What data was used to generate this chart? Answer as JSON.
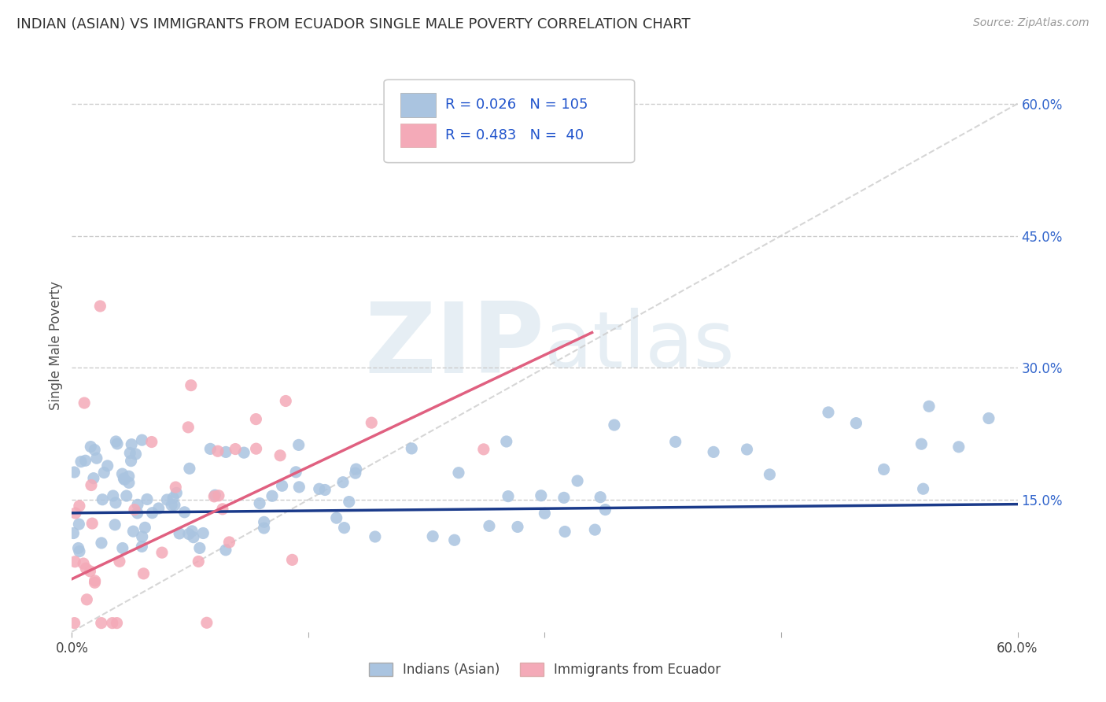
{
  "title": "INDIAN (ASIAN) VS IMMIGRANTS FROM ECUADOR SINGLE MALE POVERTY CORRELATION CHART",
  "source": "Source: ZipAtlas.com",
  "ylabel": "Single Male Poverty",
  "x_min": 0.0,
  "x_max": 0.6,
  "y_min": 0.0,
  "y_max": 0.65,
  "y_ticks_right": [
    0.15,
    0.3,
    0.45,
    0.6
  ],
  "y_tick_labels_right": [
    "15.0%",
    "30.0%",
    "45.0%",
    "60.0%"
  ],
  "grid_color": "#cccccc",
  "blue_color": "#aac4e0",
  "pink_color": "#f4aab8",
  "blue_line_color": "#1a3a8a",
  "pink_line_color": "#e06080",
  "ref_line_color": "#cccccc",
  "R_blue": 0.026,
  "N_blue": 105,
  "R_pink": 0.483,
  "N_pink": 40,
  "legend_label_blue": "Indians (Asian)",
  "legend_label_pink": "Immigrants from Ecuador",
  "watermark_zip": "ZIP",
  "watermark_atlas": "atlas",
  "blue_trend_x": [
    0.0,
    0.6
  ],
  "blue_trend_y": [
    0.135,
    0.145
  ],
  "pink_trend_x": [
    0.0,
    0.33
  ],
  "pink_trend_y": [
    0.06,
    0.34
  ],
  "legend_text_color": "#2255cc"
}
